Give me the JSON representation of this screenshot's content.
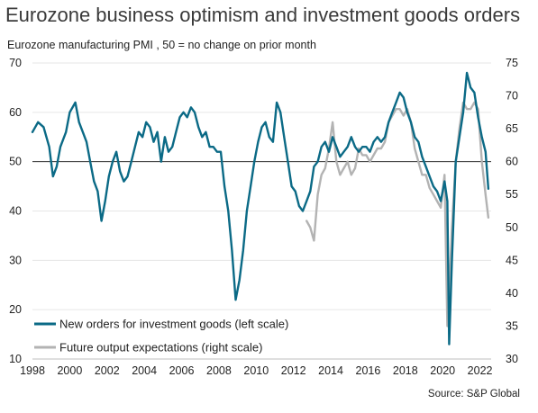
{
  "title": "Eurozone business optimism and investment goods orders",
  "subtitle": "Eurozone manufacturing PMI , 50 = no change on prior month",
  "source": "Source: S&P Global",
  "chart_data": {
    "type": "line",
    "title": "Eurozone business optimism and investment goods orders",
    "xlabel": "",
    "ylabel": "Eurozone manufacturing PMI , 50 = no change on prior month",
    "xlim": [
      1998,
      2022.6
    ],
    "ylim_left": [
      10,
      70
    ],
    "ylim_right": [
      30,
      75
    ],
    "x_ticks": [
      1998,
      2000,
      2002,
      2004,
      2006,
      2008,
      2010,
      2012,
      2014,
      2016,
      2018,
      2020,
      2022
    ],
    "y_ticks_left": [
      10,
      20,
      30,
      40,
      50,
      60,
      70
    ],
    "y_ticks_right": [
      30,
      35,
      40,
      45,
      50,
      55,
      60,
      65,
      70,
      75
    ],
    "reference_line": 50,
    "grid": true,
    "legend_position": "bottom-left",
    "series": [
      {
        "name": "New orders for investment goods (left scale)",
        "axis": "left",
        "color": "#0b6a86",
        "x": [
          1998.0,
          1998.3,
          1998.6,
          1998.9,
          1999.1,
          1999.3,
          1999.5,
          1999.8,
          2000.0,
          2000.3,
          2000.5,
          2000.7,
          2000.9,
          2001.1,
          2001.3,
          2001.5,
          2001.7,
          2001.9,
          2002.1,
          2002.3,
          2002.5,
          2002.7,
          2002.9,
          2003.1,
          2003.3,
          2003.5,
          2003.7,
          2003.9,
          2004.1,
          2004.3,
          2004.5,
          2004.7,
          2004.9,
          2005.1,
          2005.3,
          2005.5,
          2005.7,
          2005.9,
          2006.1,
          2006.3,
          2006.5,
          2006.7,
          2006.9,
          2007.1,
          2007.3,
          2007.5,
          2007.7,
          2007.9,
          2008.1,
          2008.3,
          2008.5,
          2008.7,
          2008.9,
          2009.1,
          2009.3,
          2009.5,
          2009.7,
          2009.9,
          2010.1,
          2010.3,
          2010.5,
          2010.7,
          2010.9,
          2011.1,
          2011.3,
          2011.5,
          2011.7,
          2011.9,
          2012.1,
          2012.3,
          2012.5,
          2012.7,
          2012.9,
          2013.1,
          2013.3,
          2013.5,
          2013.7,
          2013.9,
          2014.1,
          2014.3,
          2014.5,
          2014.7,
          2014.9,
          2015.1,
          2015.3,
          2015.5,
          2015.7,
          2015.9,
          2016.1,
          2016.3,
          2016.5,
          2016.7,
          2016.9,
          2017.1,
          2017.3,
          2017.5,
          2017.7,
          2017.9,
          2018.1,
          2018.3,
          2018.5,
          2018.7,
          2018.9,
          2019.1,
          2019.3,
          2019.5,
          2019.7,
          2019.9,
          2020.1,
          2020.25,
          2020.35,
          2020.5,
          2020.7,
          2020.9,
          2021.1,
          2021.3,
          2021.5,
          2021.7,
          2021.9,
          2022.1,
          2022.3,
          2022.45
        ],
        "y": [
          56,
          58,
          57,
          53,
          47,
          49,
          53,
          56,
          60,
          62,
          58,
          56,
          54,
          50,
          46,
          44,
          38,
          42,
          47,
          50,
          52,
          48,
          46,
          47,
          50,
          53,
          56,
          55,
          58,
          57,
          54,
          56,
          50,
          55,
          52,
          53,
          56,
          59,
          60,
          59,
          61,
          60,
          57,
          55,
          56,
          53,
          53,
          52,
          52,
          45,
          40,
          32,
          22,
          26,
          32,
          40,
          45,
          50,
          54,
          57,
          58,
          55,
          54,
          62,
          60,
          55,
          50,
          45,
          44,
          41,
          40,
          42,
          44,
          49,
          50,
          53,
          54,
          52,
          55,
          53,
          51,
          52,
          53,
          55,
          53,
          52,
          53,
          53,
          52,
          54,
          55,
          54,
          55,
          58,
          60,
          62,
          64,
          63,
          60,
          58,
          55,
          54,
          51,
          49,
          47,
          45,
          44,
          42,
          46,
          42,
          13,
          30,
          50,
          55,
          60,
          68,
          65,
          64,
          59,
          55,
          52,
          44.5
        ]
      },
      {
        "name": "Future output expectations (right scale)",
        "axis": "right",
        "color": "#b3b3b3",
        "x": [
          2012.7,
          2012.9,
          2013.1,
          2013.3,
          2013.5,
          2013.7,
          2013.9,
          2014.1,
          2014.3,
          2014.5,
          2014.7,
          2014.9,
          2015.1,
          2015.3,
          2015.5,
          2015.7,
          2015.9,
          2016.1,
          2016.3,
          2016.5,
          2016.7,
          2016.9,
          2017.1,
          2017.3,
          2017.5,
          2017.7,
          2017.9,
          2018.1,
          2018.3,
          2018.5,
          2018.7,
          2018.9,
          2019.1,
          2019.3,
          2019.5,
          2019.7,
          2019.9,
          2020.1,
          2020.25,
          2020.35,
          2020.5,
          2020.7,
          2020.9,
          2021.1,
          2021.3,
          2021.5,
          2021.7,
          2021.9,
          2022.1,
          2022.3,
          2022.45
        ],
        "y": [
          51,
          50,
          48,
          55,
          58,
          59,
          62,
          66,
          60,
          58,
          59,
          60,
          58,
          59,
          62,
          61,
          61,
          60,
          61,
          62,
          62,
          63,
          66,
          67,
          68,
          68,
          67,
          68,
          66,
          62,
          60,
          58,
          58,
          56,
          55,
          54,
          53,
          58,
          35,
          40,
          50,
          60,
          65,
          69,
          68,
          68,
          69,
          68,
          60,
          55,
          51.5
        ]
      }
    ]
  }
}
